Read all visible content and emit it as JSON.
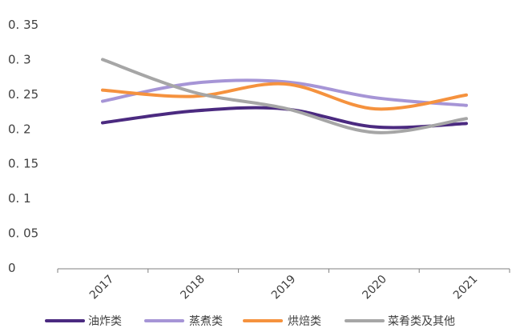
{
  "chart_data": {
    "type": "line",
    "title": "",
    "xlabel": "",
    "ylabel": "",
    "categories": [
      "2017",
      "2018",
      "2019",
      "2020",
      "2021"
    ],
    "ylim": [
      0,
      0.35
    ],
    "yticks": [
      "0",
      "0. 05",
      "0. 1",
      "0. 15",
      "0. 2",
      "0. 25",
      "0. 3",
      "0. 35"
    ],
    "grid": false,
    "legend_position": "bottom",
    "smooth": true,
    "series": [
      {
        "name": "油炸类",
        "color": "#4b2a80",
        "values": [
          0.209,
          0.226,
          0.229,
          0.203,
          0.208
        ]
      },
      {
        "name": "蒸煮类",
        "color": "#a695d6",
        "values": [
          0.24,
          0.266,
          0.268,
          0.245,
          0.234
        ]
      },
      {
        "name": "烘焙类",
        "color": "#f5923e",
        "values": [
          0.256,
          0.247,
          0.265,
          0.229,
          0.249
        ]
      },
      {
        "name": "菜肴类及其他",
        "color": "#a6a6a6",
        "values": [
          0.3,
          0.253,
          0.23,
          0.195,
          0.215
        ]
      }
    ]
  }
}
